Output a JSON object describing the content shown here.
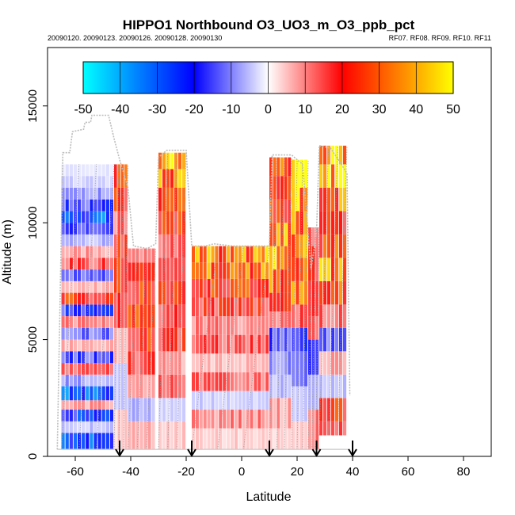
{
  "chart_data": {
    "type": "heatmap",
    "title": "HIPPO1 Northbound O3_UO3_m_O3_ppb_pct",
    "subtitle_left": "20090120. 20090123. 20090126. 20090128. 20090130",
    "subtitle_right": "RF07. RF08. RF09. RF10. RF11",
    "xlabel": "Latitude",
    "ylabel": "Altitude (m)",
    "xlim": [
      -70,
      90
    ],
    "ylim": [
      0,
      17500
    ],
    "x_ticks": [
      -60,
      -40,
      -20,
      0,
      20,
      40,
      60,
      80
    ],
    "y_ticks": [
      0,
      5000,
      10000,
      15000
    ],
    "colorbar": {
      "min": -50,
      "max": 50,
      "ticks": [
        -50,
        -40,
        -30,
        -20,
        -10,
        0,
        10,
        20,
        30,
        40,
        50
      ],
      "stops": [
        {
          "v": -50,
          "color": "#00ffff"
        },
        {
          "v": -20,
          "color": "#0000ff"
        },
        {
          "v": 0,
          "color": "#ffffff"
        },
        {
          "v": 20,
          "color": "#ff0000"
        },
        {
          "v": 50,
          "color": "#ffff00"
        }
      ]
    },
    "arrows_latitude": [
      -44,
      -18,
      10,
      27,
      40
    ],
    "outline": [
      [
        -66.5,
        300
      ],
      [
        -64.5,
        13000
      ],
      [
        -62,
        13000
      ],
      [
        -61,
        13900
      ],
      [
        -57,
        14000
      ],
      [
        -56.5,
        14300
      ],
      [
        -54.5,
        14300
      ],
      [
        -54,
        14600
      ],
      [
        -48,
        14600
      ],
      [
        -46,
        13600
      ],
      [
        -44,
        12700
      ],
      [
        -41,
        11500
      ],
      [
        -39,
        9000
      ],
      [
        -34,
        8900
      ],
      [
        -31,
        9100
      ],
      [
        -30,
        12800
      ],
      [
        -27,
        13100
      ],
      [
        -20,
        13100
      ],
      [
        -18,
        9000
      ],
      [
        -13,
        9000
      ],
      [
        -10,
        9100
      ],
      [
        -3,
        9000
      ],
      [
        5,
        9000
      ],
      [
        10,
        9000
      ],
      [
        11,
        12900
      ],
      [
        18,
        12900
      ],
      [
        22,
        12500
      ],
      [
        25,
        8000
      ],
      [
        27,
        9600
      ],
      [
        28,
        13300
      ],
      [
        32,
        13200
      ],
      [
        36,
        12500
      ],
      [
        38,
        12100
      ],
      [
        39,
        2600
      ]
    ],
    "profiles": [
      {
        "lat0": -65,
        "lat1": -46,
        "alt0": 300,
        "alt1": 12500,
        "bands": [
          [
            300,
            1000,
            -25
          ],
          [
            1000,
            1500,
            -5
          ],
          [
            1500,
            2000,
            -22
          ],
          [
            2000,
            2400,
            8
          ],
          [
            2400,
            3000,
            -28
          ],
          [
            3000,
            3500,
            -8
          ],
          [
            3500,
            4000,
            12
          ],
          [
            4000,
            4500,
            -15
          ],
          [
            4500,
            5000,
            6
          ],
          [
            5000,
            5500,
            -12
          ],
          [
            5500,
            6000,
            10
          ],
          [
            6000,
            6500,
            -18
          ],
          [
            6500,
            7000,
            22
          ],
          [
            7000,
            7500,
            6
          ],
          [
            7500,
            8000,
            -12
          ],
          [
            8000,
            8500,
            14
          ],
          [
            8500,
            9000,
            8
          ],
          [
            9000,
            9500,
            -6
          ],
          [
            9500,
            10000,
            -14
          ],
          [
            10000,
            10500,
            -28
          ],
          [
            10500,
            11000,
            -16
          ],
          [
            11000,
            11500,
            -8
          ],
          [
            11500,
            12000,
            -4
          ],
          [
            12000,
            12500,
            -2
          ]
        ]
      },
      {
        "lat0": -46,
        "lat1": -41,
        "alt0": 300,
        "alt1": 12500,
        "bands": [
          [
            300,
            2000,
            4
          ],
          [
            2000,
            4000,
            -4
          ],
          [
            4000,
            5500,
            8
          ],
          [
            5500,
            7000,
            16
          ],
          [
            7000,
            8500,
            24
          ],
          [
            8500,
            9500,
            20
          ],
          [
            9500,
            10500,
            12
          ],
          [
            10500,
            11500,
            22
          ],
          [
            11500,
            12500,
            26
          ]
        ]
      },
      {
        "lat0": -41,
        "lat1": -31,
        "alt0": 300,
        "alt1": 8900,
        "bands": [
          [
            300,
            1500,
            6
          ],
          [
            1500,
            2500,
            -6
          ],
          [
            2500,
            3500,
            10
          ],
          [
            3500,
            4500,
            16
          ],
          [
            4500,
            5500,
            22
          ],
          [
            5500,
            6500,
            24
          ],
          [
            6500,
            7500,
            22
          ],
          [
            7500,
            8300,
            18
          ],
          [
            8300,
            8900,
            14
          ]
        ]
      },
      {
        "lat0": -30,
        "lat1": -20,
        "alt0": 300,
        "alt1": 13000,
        "bands": [
          [
            300,
            1500,
            5
          ],
          [
            1500,
            2500,
            -4
          ],
          [
            2500,
            3500,
            12
          ],
          [
            3500,
            4500,
            8
          ],
          [
            4500,
            5500,
            18
          ],
          [
            5500,
            6500,
            14
          ],
          [
            6500,
            7500,
            20
          ],
          [
            7500,
            8500,
            12
          ],
          [
            8500,
            9500,
            16
          ],
          [
            9500,
            10500,
            22
          ],
          [
            10500,
            11500,
            26
          ],
          [
            11500,
            12300,
            34
          ],
          [
            12300,
            13000,
            40
          ]
        ]
      },
      {
        "lat0": -18,
        "lat1": 10,
        "alt0": 300,
        "alt1": 9000,
        "bands": [
          [
            300,
            1200,
            4
          ],
          [
            1200,
            2000,
            10
          ],
          [
            2000,
            2800,
            -4
          ],
          [
            2800,
            3600,
            12
          ],
          [
            3600,
            4400,
            6
          ],
          [
            4400,
            5200,
            14
          ],
          [
            5200,
            6000,
            10
          ],
          [
            6000,
            6800,
            18
          ],
          [
            6800,
            7600,
            24
          ],
          [
            7600,
            8300,
            30
          ],
          [
            8300,
            9000,
            36
          ]
        ]
      },
      {
        "lat0": 10,
        "lat1": 18,
        "alt0": 300,
        "alt1": 12800,
        "bands": [
          [
            300,
            1200,
            4
          ],
          [
            1200,
            2500,
            8
          ],
          [
            2500,
            3500,
            -6
          ],
          [
            3500,
            4500,
            -10
          ],
          [
            4500,
            5500,
            -14
          ],
          [
            5500,
            6200,
            10
          ],
          [
            6200,
            7000,
            24
          ],
          [
            7000,
            8000,
            34
          ],
          [
            8000,
            9000,
            38
          ],
          [
            9000,
            10000,
            32
          ],
          [
            10000,
            11000,
            26
          ],
          [
            11000,
            12000,
            24
          ],
          [
            12000,
            12800,
            30
          ]
        ]
      },
      {
        "lat0": 18,
        "lat1": 24,
        "alt0": 300,
        "alt1": 12700,
        "bands": [
          [
            300,
            1500,
            6
          ],
          [
            1500,
            3000,
            -4
          ],
          [
            3000,
            4500,
            -10
          ],
          [
            4500,
            5500,
            -22
          ],
          [
            5500,
            6500,
            14
          ],
          [
            6500,
            7500,
            30
          ],
          [
            7500,
            8500,
            38
          ],
          [
            8500,
            9500,
            40
          ],
          [
            9500,
            10500,
            32
          ],
          [
            10500,
            11500,
            42
          ],
          [
            11500,
            12700,
            46
          ]
        ]
      },
      {
        "lat0": 24,
        "lat1": 28,
        "alt0": 300,
        "alt1": 9800,
        "bands": [
          [
            300,
            2000,
            10
          ],
          [
            2000,
            3500,
            -6
          ],
          [
            3500,
            5000,
            -18
          ],
          [
            5000,
            6000,
            12
          ],
          [
            6000,
            7500,
            30
          ],
          [
            7500,
            9000,
            20
          ],
          [
            9000,
            9800,
            14
          ]
        ]
      },
      {
        "lat0": 28,
        "lat1": 38,
        "alt0": 900,
        "alt1": 13300,
        "bands": [
          [
            900,
            1500,
            16
          ],
          [
            1500,
            2500,
            22
          ],
          [
            2500,
            3500,
            -6
          ],
          [
            3500,
            4500,
            8
          ],
          [
            4500,
            5500,
            -14
          ],
          [
            5500,
            6500,
            12
          ],
          [
            6500,
            7500,
            28
          ],
          [
            7500,
            8500,
            34
          ],
          [
            8500,
            9500,
            26
          ],
          [
            9500,
            10500,
            22
          ],
          [
            10500,
            11500,
            30
          ],
          [
            11500,
            12500,
            40
          ],
          [
            12500,
            13300,
            44
          ]
        ]
      }
    ]
  }
}
